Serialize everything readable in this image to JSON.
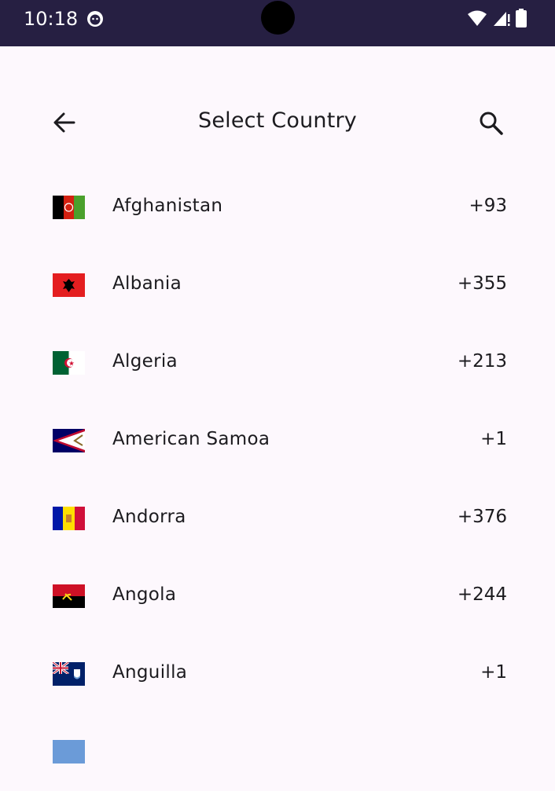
{
  "status_bar": {
    "time": "10:18"
  },
  "header": {
    "title": "Select Country"
  },
  "countries": [
    {
      "name": "Afghanistan",
      "code": "+93"
    },
    {
      "name": "Albania",
      "code": "+355"
    },
    {
      "name": "Algeria",
      "code": "+213"
    },
    {
      "name": "American Samoa",
      "code": "+1"
    },
    {
      "name": "Andorra",
      "code": "+376"
    },
    {
      "name": "Angola",
      "code": "+244"
    },
    {
      "name": "Anguilla",
      "code": "+1"
    }
  ],
  "icons": {
    "back": "arrow-back-icon",
    "search": "search-icon",
    "wifi": "wifi-icon",
    "signal": "signal-icon",
    "battery": "battery-icon"
  },
  "colors": {
    "status_bar": "#261f42",
    "background": "#fdf8fd",
    "text": "#1c1b1f"
  }
}
